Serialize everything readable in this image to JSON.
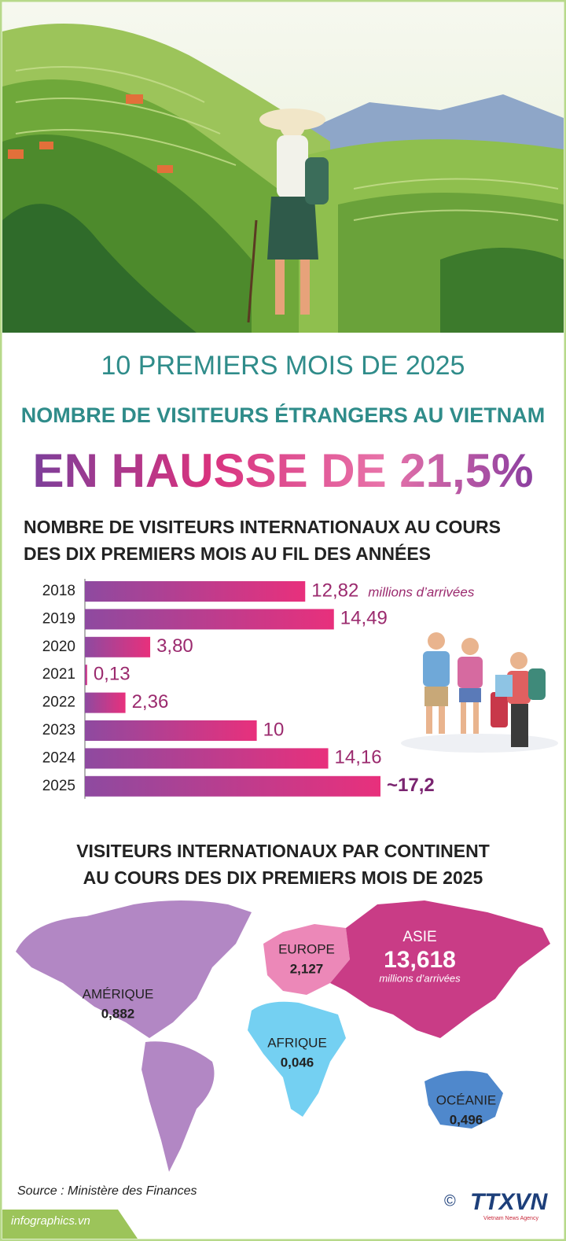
{
  "header": {
    "kicker": "10 PREMIERS MOIS DE 2025",
    "title": "NOMBRE DE VISITEURS ÉTRANGERS AU VIETNAM",
    "headline": "EN HAUSSE DE 21,5%"
  },
  "chart_data": {
    "type": "bar",
    "orientation": "horizontal",
    "title": [
      "NOMBRE DE VISITEURS INTERNATIONAUX AU COURS",
      "DES DIX PREMIERS MOIS AU FIL DES ANNÉES"
    ],
    "unit": "millions d’arrivées",
    "categories": [
      "2018",
      "2019",
      "2020",
      "2021",
      "2022",
      "2023",
      "2024",
      "2025"
    ],
    "values": [
      12.82,
      14.49,
      3.8,
      0.13,
      2.36,
      10,
      14.16,
      17.2
    ],
    "value_labels": [
      "12,82",
      "14,49",
      "3,80",
      "0,13",
      "2,36",
      "10",
      "14,16",
      "~17,2"
    ],
    "colors": [
      "#8e4aa0",
      "#e8307c"
    ]
  },
  "map": {
    "title": [
      "VISITEURS INTERNATIONAUX PAR CONTINENT",
      "AU COURS DES DIX PREMIERS MOIS DE 2025"
    ],
    "regions": [
      {
        "name": "AMÉRIQUE",
        "value": "0,882"
      },
      {
        "name": "EUROPE",
        "value": "2,127"
      },
      {
        "name": "ASIE",
        "value": "13,618",
        "unit": "millions d’arrivées"
      },
      {
        "name": "AFRIQUE",
        "value": "0,046"
      },
      {
        "name": "OCÉANIE",
        "value": "0,496"
      }
    ]
  },
  "footer": {
    "source": "Source : Ministère des Finances",
    "site": "infographics.vn",
    "logo": "TTXVN",
    "agency": "Vietnam News Agency"
  }
}
